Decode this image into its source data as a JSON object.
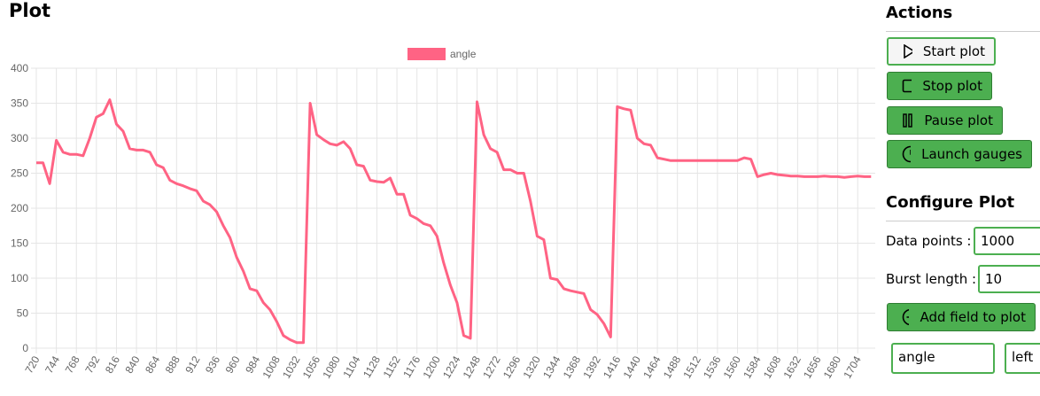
{
  "header": {
    "title": "Plot"
  },
  "chart_data": {
    "type": "line",
    "x": [
      720,
      728,
      736,
      744,
      752,
      760,
      768,
      776,
      784,
      792,
      800,
      808,
      816,
      824,
      832,
      840,
      848,
      856,
      864,
      872,
      880,
      888,
      896,
      904,
      912,
      920,
      928,
      936,
      944,
      952,
      960,
      968,
      976,
      984,
      992,
      1000,
      1008,
      1016,
      1024,
      1032,
      1040,
      1048,
      1056,
      1064,
      1072,
      1080,
      1088,
      1096,
      1104,
      1112,
      1120,
      1128,
      1136,
      1144,
      1152,
      1160,
      1168,
      1176,
      1184,
      1192,
      1200,
      1208,
      1216,
      1224,
      1232,
      1240,
      1248,
      1256,
      1264,
      1272,
      1280,
      1288,
      1296,
      1304,
      1312,
      1320,
      1328,
      1336,
      1344,
      1352,
      1360,
      1368,
      1376,
      1384,
      1392,
      1400,
      1408,
      1416,
      1424,
      1432,
      1440,
      1448,
      1456,
      1464,
      1472,
      1480,
      1488,
      1496,
      1504,
      1512,
      1520,
      1528,
      1536,
      1544,
      1552,
      1560,
      1568,
      1576,
      1584,
      1592,
      1600,
      1608,
      1616,
      1624,
      1632,
      1640,
      1648,
      1656,
      1664,
      1672,
      1680,
      1688,
      1696,
      1704,
      1712,
      1720
    ],
    "series": [
      {
        "name": "angle",
        "color": "#ff6384",
        "values": [
          265,
          265,
          235,
          297,
          280,
          277,
          277,
          275,
          300,
          330,
          335,
          355,
          320,
          310,
          285,
          283,
          283,
          280,
          262,
          258,
          240,
          235,
          232,
          228,
          225,
          210,
          205,
          195,
          175,
          158,
          130,
          110,
          85,
          82,
          65,
          55,
          38,
          18,
          12,
          8,
          8,
          350,
          305,
          298,
          292,
          290,
          295,
          285,
          262,
          260,
          240,
          238,
          237,
          243,
          220,
          220,
          190,
          185,
          178,
          175,
          160,
          122,
          90,
          65,
          18,
          14,
          352,
          305,
          285,
          280,
          255,
          255,
          250,
          250,
          210,
          160,
          155,
          100,
          98,
          85,
          82,
          80,
          78,
          55,
          48,
          35,
          16,
          345,
          342,
          340,
          300,
          292,
          290,
          272,
          270,
          268,
          268,
          268,
          268,
          268,
          268,
          268,
          268,
          268,
          268,
          268,
          272,
          270,
          245,
          248,
          250,
          248,
          247,
          246,
          246,
          245,
          245,
          245,
          246,
          245,
          245,
          244,
          245,
          246,
          245,
          245
        ]
      }
    ],
    "xlim": [
      720,
      1725
    ],
    "ylim": [
      0,
      400
    ],
    "xticks": [
      720,
      744,
      768,
      792,
      816,
      840,
      864,
      888,
      912,
      936,
      960,
      984,
      1008,
      1032,
      1056,
      1080,
      1104,
      1128,
      1152,
      1176,
      1200,
      1224,
      1248,
      1272,
      1296,
      1320,
      1344,
      1368,
      1392,
      1416,
      1440,
      1464,
      1488,
      1512,
      1536,
      1560,
      1584,
      1608,
      1632,
      1656,
      1680,
      1704
    ],
    "yticks": [
      0,
      50,
      100,
      150,
      200,
      250,
      300,
      350,
      400
    ],
    "grid": true,
    "legend": "top"
  },
  "sidebar": {
    "actions": {
      "title": "Actions",
      "buttons": [
        "Start plot",
        "Stop plot",
        "Pause plot",
        "Launch gauges"
      ]
    },
    "configure": {
      "title": "Configure Plot",
      "fields": [
        {
          "label": "Data points :",
          "value": 1000
        },
        {
          "label": "Burst length :",
          "value": 10
        }
      ],
      "add_button": "Add field to plot",
      "field_row": [
        "angle",
        "left"
      ]
    }
  }
}
